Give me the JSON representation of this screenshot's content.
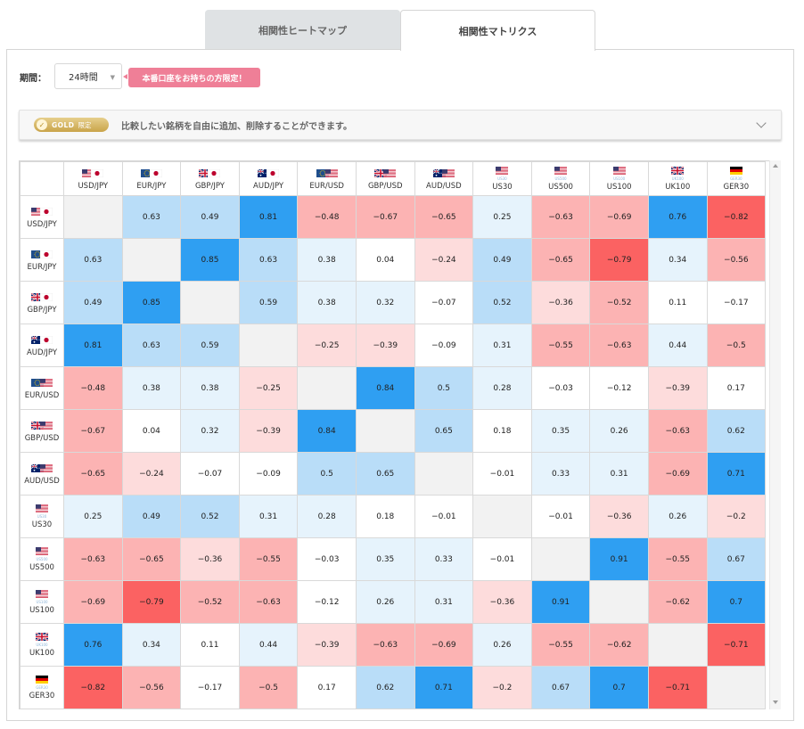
{
  "tabs": [
    {
      "label": "相関性ヒートマップ",
      "active": false
    },
    {
      "label": "相関性マトリクス",
      "active": true
    }
  ],
  "controls": {
    "period_label": "期間：",
    "period_value": "24時間",
    "promo_label": "本番口座をお持ちの方限定！"
  },
  "gold_bar": {
    "badge_text": "GOLD",
    "badge_sub": "限定",
    "description": "比較したい銘柄を自由に追加、削除することができます。"
  },
  "colors": {
    "strong_pos": "#2f9ff2",
    "mid_pos": "#b9ddf8",
    "weak_pos": "#e6f3fc",
    "neutral": "#ffffff",
    "weak_neg": "#fddcdc",
    "mid_neg": "#fcb3b3",
    "strong_neg": "#fb6262",
    "diagonal": "#f2f2f2"
  },
  "symbols": [
    {
      "label": "USD/JPY",
      "flags": [
        "us",
        "jp"
      ],
      "sub": ""
    },
    {
      "label": "EUR/JPY",
      "flags": [
        "eu",
        "jp"
      ],
      "sub": ""
    },
    {
      "label": "GBP/JPY",
      "flags": [
        "gb",
        "jp"
      ],
      "sub": ""
    },
    {
      "label": "AUD/JPY",
      "flags": [
        "au",
        "jp"
      ],
      "sub": ""
    },
    {
      "label": "EUR/USD",
      "flags": [
        "eu",
        "us"
      ],
      "sub": ""
    },
    {
      "label": "GBP/USD",
      "flags": [
        "gb",
        "us"
      ],
      "sub": ""
    },
    {
      "label": "AUD/USD",
      "flags": [
        "au",
        "us"
      ],
      "sub": ""
    },
    {
      "label": "US30",
      "flags": [
        "us"
      ],
      "sub": "US30"
    },
    {
      "label": "US500",
      "flags": [
        "us"
      ],
      "sub": "US500"
    },
    {
      "label": "US100",
      "flags": [
        "us"
      ],
      "sub": "US100"
    },
    {
      "label": "UK100",
      "flags": [
        "gb"
      ],
      "sub": "UK100"
    },
    {
      "label": "GER30",
      "flags": [
        "de"
      ],
      "sub": "GER30"
    }
  ],
  "matrix": [
    [
      null,
      "0.63",
      "0.49",
      "0.81",
      "−0.48",
      "−0.67",
      "−0.65",
      "0.25",
      "−0.63",
      "−0.69",
      "0.76",
      "−0.82"
    ],
    [
      "0.63",
      null,
      "0.85",
      "0.63",
      "0.38",
      "0.04",
      "−0.24",
      "0.49",
      "−0.65",
      "−0.79",
      "0.34",
      "−0.56"
    ],
    [
      "0.49",
      "0.85",
      null,
      "0.59",
      "0.38",
      "0.32",
      "−0.07",
      "0.52",
      "−0.36",
      "−0.52",
      "0.11",
      "−0.17"
    ],
    [
      "0.81",
      "0.63",
      "0.59",
      null,
      "−0.25",
      "−0.39",
      "−0.09",
      "0.31",
      "−0.55",
      "−0.63",
      "0.44",
      "−0.5"
    ],
    [
      "−0.48",
      "0.38",
      "0.38",
      "−0.25",
      null,
      "0.84",
      "0.5",
      "0.28",
      "−0.03",
      "−0.12",
      "−0.39",
      "0.17"
    ],
    [
      "−0.67",
      "0.04",
      "0.32",
      "−0.39",
      "0.84",
      null,
      "0.65",
      "0.18",
      "0.35",
      "0.26",
      "−0.63",
      "0.62"
    ],
    [
      "−0.65",
      "−0.24",
      "−0.07",
      "−0.09",
      "0.5",
      "0.65",
      null,
      "−0.01",
      "0.33",
      "0.31",
      "−0.69",
      "0.71"
    ],
    [
      "0.25",
      "0.49",
      "0.52",
      "0.31",
      "0.28",
      "0.18",
      "−0.01",
      null,
      "−0.01",
      "−0.36",
      "0.26",
      "−0.2"
    ],
    [
      "−0.63",
      "−0.65",
      "−0.36",
      "−0.55",
      "−0.03",
      "0.35",
      "0.33",
      "−0.01",
      null,
      "0.91",
      "−0.55",
      "0.67"
    ],
    [
      "−0.69",
      "−0.79",
      "−0.52",
      "−0.63",
      "−0.12",
      "0.26",
      "0.31",
      "−0.36",
      "0.91",
      null,
      "−0.62",
      "0.7"
    ],
    [
      "0.76",
      "0.34",
      "0.11",
      "0.44",
      "−0.39",
      "−0.63",
      "−0.69",
      "0.26",
      "−0.55",
      "−0.62",
      null,
      "−0.71"
    ],
    [
      "−0.82",
      "−0.56",
      "−0.17",
      "−0.5",
      "0.17",
      "0.62",
      "0.71",
      "−0.2",
      "0.67",
      "0.7",
      "−0.71",
      null
    ]
  ]
}
